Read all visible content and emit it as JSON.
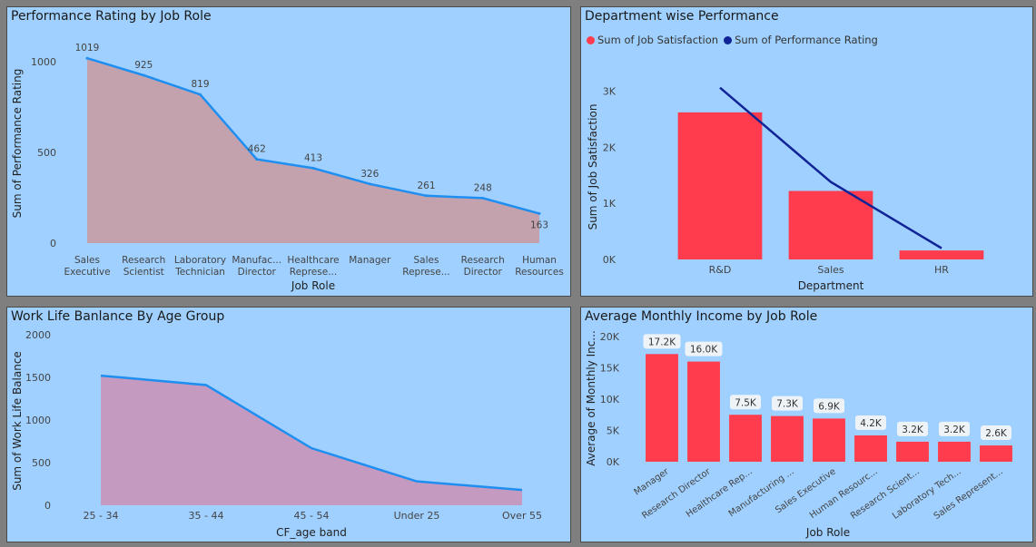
{
  "chart_data": [
    {
      "type": "area",
      "title": "Performance Rating by Job Role",
      "xlabel": "Job Role",
      "ylabel": "Sum of Performance Rating",
      "ylim": [
        0,
        1100
      ],
      "yticks": [
        "0",
        "500",
        "1000"
      ],
      "categories": [
        "Sales Executive",
        "Research Scientist",
        "Laboratory Technician",
        "Manufacturing Director",
        "Healthcare Representative",
        "Manager",
        "Sales Representative",
        "Research Director",
        "Human Resources"
      ],
      "tick_labels": [
        [
          "Sales",
          "Executive"
        ],
        [
          "Research",
          "Scientist"
        ],
        [
          "Laboratory",
          "Technician"
        ],
        [
          "Manufac...",
          "Director"
        ],
        [
          "Healthcare",
          "Represe..."
        ],
        [
          "Manager"
        ],
        [
          "Sales",
          "Represe..."
        ],
        [
          "Research",
          "Director"
        ],
        [
          "Human",
          "Resources"
        ]
      ],
      "values": [
        1019,
        925,
        819,
        462,
        413,
        326,
        261,
        248,
        163
      ],
      "data_labels": [
        "1019",
        "925",
        "819",
        "462",
        "413",
        "326",
        "261",
        "248",
        "163"
      ],
      "colors": {
        "line": "#1f8ef1",
        "fill": "#c4a2ad"
      }
    },
    {
      "type": "bar",
      "title": "Department wise Performance",
      "xlabel": "Department",
      "ylabel": "Sum of Job Satisfaction",
      "ylim": [
        0,
        3200
      ],
      "yticks": [
        "0K",
        "1K",
        "2K",
        "3K"
      ],
      "categories": [
        "R&D",
        "Sales",
        "HR"
      ],
      "series": [
        {
          "name": "Sum of Job Satisfaction",
          "type": "bar",
          "values": [
            2620,
            1220,
            160
          ],
          "color": "#ff3b4e"
        },
        {
          "name": "Sum of Performance Rating",
          "type": "line",
          "values": [
            3060,
            1380,
            200
          ],
          "color": "#102497"
        }
      ],
      "legend": "top-left"
    },
    {
      "type": "area",
      "title": "Work Life Banlance By Age Group",
      "xlabel": "CF_age band",
      "ylabel": "Sum of Work Life Balance",
      "ylim": [
        0,
        2000
      ],
      "yticks": [
        "0",
        "500",
        "1000",
        "1500",
        "2000"
      ],
      "categories": [
        "25 - 34",
        "35 - 44",
        "45 - 54",
        "Under 25",
        "Over 55"
      ],
      "values": [
        1520,
        1410,
        670,
        280,
        180
      ],
      "colors": {
        "line": "#1f8ef1",
        "fill": "#c49ac0"
      }
    },
    {
      "type": "bar",
      "title": "Average Monthly Income by Job Role",
      "xlabel": "Job Role",
      "ylabel": "Average of Monthly Inc...",
      "ylim": [
        0,
        20000
      ],
      "yticks": [
        "0K",
        "5K",
        "10K",
        "15K",
        "20K"
      ],
      "categories": [
        "Manager",
        "Research Director",
        "Healthcare Rep...",
        "Manufacturing ...",
        "Sales Executive",
        "Human Resourc...",
        "Research Scient...",
        "Laboratory Tech...",
        "Sales Represent..."
      ],
      "values": [
        17200,
        16000,
        7500,
        7300,
        6900,
        4200,
        3200,
        3200,
        2600
      ],
      "data_labels": [
        "17.2K",
        "16.0K",
        "7.5K",
        "7.3K",
        "6.9K",
        "4.2K",
        "3.2K",
        "3.2K",
        "2.6K"
      ],
      "colors": {
        "bar": "#ff3b4e"
      }
    }
  ]
}
